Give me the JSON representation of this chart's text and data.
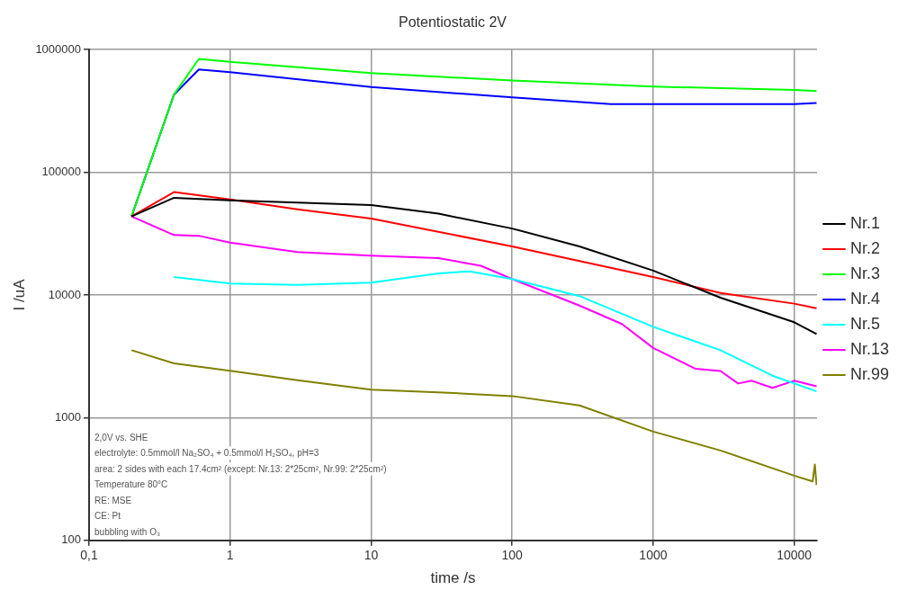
{
  "chart_data": {
    "type": "line",
    "title": "Potentiostatic 2V",
    "xlabel": "time /s",
    "ylabel": "I /uA",
    "log": "xy",
    "grid": true,
    "legend": "right",
    "marker": "none",
    "line_style": "solid",
    "xlim": [
      0.1,
      14500
    ],
    "xticks": [
      {
        "value": 0.1,
        "label": "0,1"
      },
      1,
      10,
      100,
      1000,
      10000
    ],
    "ylim": [
      100,
      1000000
    ],
    "yticks": [
      100,
      1000,
      10000,
      100000,
      1000000
    ],
    "annotations": [
      "2,0V vs. SHE",
      "electrolyte: 0.5mmol/l Na₂SO₄ + 0.5mmol/l H₂SO₄, pH=3",
      "area: 2 sides with each 17.4cm² (except: Nr.13: 2*25cm², Nr.99: 2*25cm²)",
      "Temperature 80°C",
      "RE: MSE",
      "CE: Pt",
      "bubbling with O₃"
    ],
    "series": [
      {
        "name": "Nr.1",
        "color": "#000000",
        "x": [
          0.2,
          0.4,
          1,
          10,
          30,
          100,
          300,
          1000,
          3000,
          10000,
          14400
        ],
        "values": [
          43700,
          62000,
          59000,
          54000,
          46000,
          34800,
          24900,
          15800,
          9500,
          6000,
          4800
        ]
      },
      {
        "name": "Nr.2",
        "color": "#ff0000",
        "x": [
          0.2,
          0.4,
          1,
          3,
          10,
          100,
          1000,
          3000,
          10000,
          14400
        ],
        "values": [
          43700,
          69000,
          60000,
          50000,
          42000,
          24900,
          14000,
          10400,
          8500,
          7800
        ]
      },
      {
        "name": "Nr.3",
        "color": "#00ff00",
        "x": [
          0.2,
          0.4,
          0.6,
          1,
          10,
          100,
          1000,
          10000,
          14400
        ],
        "values": [
          43700,
          430000,
          840000,
          795000,
          645000,
          560000,
          500000,
          470000,
          460000
        ]
      },
      {
        "name": "Nr.4",
        "color": "#0000ff",
        "x": [
          0.2,
          0.4,
          0.6,
          1,
          10,
          100,
          500,
          1000,
          10000,
          14400
        ],
        "values": [
          43700,
          430000,
          690000,
          656000,
          495000,
          408000,
          360000,
          360000,
          360000,
          367000
        ]
      },
      {
        "name": "Nr.5",
        "color": "#00ffff",
        "x": [
          0.4,
          1,
          3,
          10,
          30,
          50,
          100,
          300,
          1000,
          3000,
          7000,
          14400
        ],
        "values": [
          14000,
          12400,
          12100,
          12600,
          15000,
          15600,
          13500,
          9800,
          5500,
          3550,
          2200,
          1640
        ]
      },
      {
        "name": "Nr.13",
        "color": "#ff00ff",
        "x": [
          0.2,
          0.4,
          0.6,
          1,
          3,
          10,
          30,
          60,
          100,
          300,
          600,
          1000,
          2000,
          3000,
          4000,
          5000,
          7000,
          10000,
          14400
        ],
        "values": [
          43700,
          30800,
          30400,
          26700,
          22400,
          20900,
          20000,
          17300,
          13500,
          8200,
          5800,
          3700,
          2500,
          2400,
          1900,
          2000,
          1750,
          2000,
          1800
        ]
      },
      {
        "name": "Nr.99",
        "color": "#808000",
        "x": [
          0.2,
          0.4,
          1,
          3,
          10,
          30,
          100,
          300,
          1000,
          3000,
          10000,
          13500,
          14000,
          14400
        ],
        "values": [
          3550,
          2770,
          2410,
          2020,
          1690,
          1610,
          1500,
          1260,
          770,
          540,
          337,
          302,
          415,
          282
        ]
      }
    ]
  }
}
